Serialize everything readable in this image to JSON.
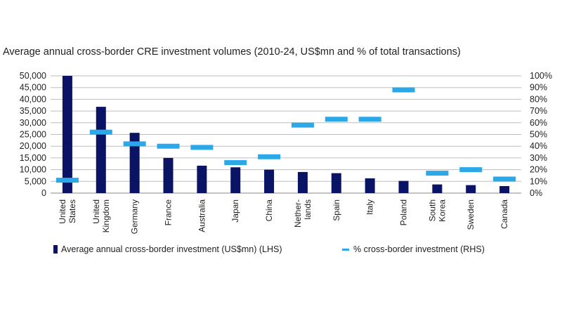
{
  "title": "Average annual cross-border CRE investment volumes (2010-24, US$mn and % of total transactions)",
  "legend": {
    "bar_label": "Average annual cross-border investment (US$mn) (LHS)",
    "dash_label": "% cross-border investment (RHS)"
  },
  "colors": {
    "bar": "#0b1464",
    "dash": "#2aa8e8"
  },
  "chart_data": {
    "type": "bar",
    "title": "Average annual cross-border CRE investment volumes (2010-24, US$mn and % of total transactions)",
    "categories": [
      [
        "United",
        "States"
      ],
      [
        "United",
        "Kingdom"
      ],
      [
        "Germany"
      ],
      [
        "France"
      ],
      [
        "Australia"
      ],
      [
        "Japan"
      ],
      [
        "China"
      ],
      [
        "Nether-",
        "lands"
      ],
      [
        "Spain"
      ],
      [
        "Italy"
      ],
      [
        "Poland"
      ],
      [
        "South",
        "Korea"
      ],
      [
        "Sweden"
      ],
      [
        "Canada"
      ]
    ],
    "series": [
      {
        "name": "Average annual cross-border investment (US$mn) (LHS)",
        "axis": "left",
        "values": [
          50000,
          36800,
          25700,
          15000,
          11700,
          11000,
          10000,
          9000,
          8500,
          6300,
          5200,
          3700,
          3400,
          3000
        ]
      },
      {
        "name": "% cross-border investment (RHS)",
        "axis": "right",
        "values": [
          11,
          52,
          42,
          40,
          39,
          26,
          31,
          58,
          63,
          63,
          88,
          17,
          20,
          12
        ]
      }
    ],
    "y_left": {
      "min": 0,
      "max": 50000,
      "ticks": [
        "0",
        "5,000",
        "10,000",
        "15,000",
        "20,000",
        "25,000",
        "30,000",
        "35,000",
        "40,000",
        "45,000",
        "50,000"
      ]
    },
    "y_right": {
      "min": 0,
      "max": 100,
      "ticks": [
        "0%",
        "10%",
        "20%",
        "30%",
        "40%",
        "50%",
        "60%",
        "70%",
        "80%",
        "90%",
        "100%"
      ]
    },
    "grid": true,
    "legend_position": "bottom"
  }
}
